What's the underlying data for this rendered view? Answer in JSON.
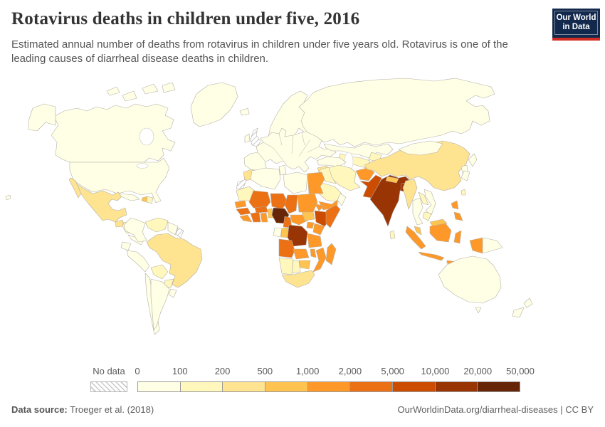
{
  "header": {
    "title": "Rotavirus deaths in children under five, 2016",
    "subtitle": "Estimated annual number of deaths from rotavirus in children under five years old. Rotavirus is one of the leading causes of diarrheal disease deaths in children.",
    "logo_line1": "Our World",
    "logo_line2": "in Data",
    "logo_bg_color": "#12294d",
    "logo_bar_color": "#d22d23"
  },
  "legend": {
    "no_data_label": "No data"
  },
  "footer": {
    "source_label": "Data source:",
    "source_value": " Troeger et al. (2018)",
    "credit": "OurWorldinData.org/diarrheal-diseases | CC BY"
  },
  "chart_data": {
    "type": "choropleth",
    "title": "Rotavirus deaths in children under five, 2016",
    "year": 2016,
    "unit": "deaths",
    "legend_position": "bottom",
    "tick_labels": [
      "0",
      "100",
      "200",
      "500",
      "1,000",
      "2,000",
      "5,000",
      "10,000",
      "20,000",
      "50,000"
    ],
    "bin_thresholds": [
      0,
      100,
      200,
      500,
      1000,
      2000,
      5000,
      10000,
      20000,
      50000
    ],
    "palette": [
      "#ffffe5",
      "#fff7bc",
      "#fee391",
      "#fec44f",
      "#fe9929",
      "#ec7014",
      "#cc4c02",
      "#993404",
      "#662506"
    ],
    "no_data": [
      "United Kingdom",
      "Western Sahara",
      "French Guiana"
    ],
    "no_data_keys": [
      "united-kingdom",
      "western-sahara",
      "french-guiana"
    ],
    "countries": [
      {
        "key": "canada",
        "name": "Canada",
        "bin": 0
      },
      {
        "key": "usa",
        "name": "United States",
        "bin": 0
      },
      {
        "key": "greenland",
        "name": "Greenland",
        "bin": 0
      },
      {
        "key": "hawaii",
        "name": "Hawaii (US)",
        "bin": 0
      },
      {
        "key": "mexico",
        "name": "Mexico",
        "bin": 2
      },
      {
        "key": "guatemala",
        "name": "Guatemala",
        "bin": 2
      },
      {
        "key": "honduras-nicaragua",
        "name": "Honduras/Nicaragua",
        "bin": 1
      },
      {
        "key": "costa-rica-panama",
        "name": "Costa Rica/Panama",
        "bin": 0
      },
      {
        "key": "cuba",
        "name": "Cuba",
        "bin": 0
      },
      {
        "key": "haiti",
        "name": "Haiti",
        "bin": 3
      },
      {
        "key": "dominican-republic",
        "name": "Dominican Republic",
        "bin": 1
      },
      {
        "key": "colombia",
        "name": "Colombia",
        "bin": 0
      },
      {
        "key": "venezuela",
        "name": "Venezuela",
        "bin": 1
      },
      {
        "key": "guyana-suriname",
        "name": "Guyana/Suriname",
        "bin": 0
      },
      {
        "key": "ecuador",
        "name": "Ecuador",
        "bin": 0
      },
      {
        "key": "peru",
        "name": "Peru",
        "bin": 0
      },
      {
        "key": "brazil",
        "name": "Brazil",
        "bin": 2
      },
      {
        "key": "bolivia",
        "name": "Bolivia",
        "bin": 1
      },
      {
        "key": "paraguay",
        "name": "Paraguay",
        "bin": 1
      },
      {
        "key": "chile",
        "name": "Chile",
        "bin": 0
      },
      {
        "key": "argentina",
        "name": "Argentina",
        "bin": 0
      },
      {
        "key": "uruguay",
        "name": "Uruguay",
        "bin": 0
      },
      {
        "key": "iceland",
        "name": "Iceland",
        "bin": 0
      },
      {
        "key": "ireland",
        "name": "Ireland",
        "bin": 0
      },
      {
        "key": "scandinavia",
        "name": "Norway/Sweden/Finland",
        "bin": 0
      },
      {
        "key": "europe",
        "name": "Europe (mainland)",
        "bin": 0
      },
      {
        "key": "russia",
        "name": "Russia",
        "bin": 0
      },
      {
        "key": "kazakhstan",
        "name": "Kazakhstan",
        "bin": 0
      },
      {
        "key": "uzbekistan-turkmenistan",
        "name": "Uzbekistan/Turkmenistan",
        "bin": 1
      },
      {
        "key": "kyrgyzstan-tajikistan",
        "name": "Kyrgyzstan/Tajikistan",
        "bin": 1
      },
      {
        "key": "turkey",
        "name": "Turkey",
        "bin": 0
      },
      {
        "key": "syria",
        "name": "Syria",
        "bin": 2
      },
      {
        "key": "iraq",
        "name": "Iraq",
        "bin": 1
      },
      {
        "key": "jordan-israel",
        "name": "Jordan/Israel",
        "bin": 1
      },
      {
        "key": "saudi-arabia",
        "name": "Saudi Arabia",
        "bin": 1
      },
      {
        "key": "yemen",
        "name": "Yemen",
        "bin": 4
      },
      {
        "key": "oman",
        "name": "Oman",
        "bin": 0
      },
      {
        "key": "iran",
        "name": "Iran",
        "bin": 1
      },
      {
        "key": "afghanistan",
        "name": "Afghanistan",
        "bin": 4
      },
      {
        "key": "pakistan",
        "name": "Pakistan",
        "bin": 6
      },
      {
        "key": "india",
        "name": "India",
        "bin": 7
      },
      {
        "key": "nepal",
        "name": "Nepal",
        "bin": 3
      },
      {
        "key": "bangladesh",
        "name": "Bangladesh",
        "bin": 7
      },
      {
        "key": "sri-lanka",
        "name": "Sri Lanka",
        "bin": 1
      },
      {
        "key": "china",
        "name": "China",
        "bin": 2
      },
      {
        "key": "mongolia",
        "name": "Mongolia",
        "bin": 0
      },
      {
        "key": "korea",
        "name": "North/South Korea",
        "bin": 0
      },
      {
        "key": "japan",
        "name": "Japan",
        "bin": 0
      },
      {
        "key": "taiwan",
        "name": "Taiwan",
        "bin": 1
      },
      {
        "key": "myanmar",
        "name": "Myanmar",
        "bin": 2
      },
      {
        "key": "thailand",
        "name": "Thailand",
        "bin": 0
      },
      {
        "key": "laos",
        "name": "Laos",
        "bin": 1
      },
      {
        "key": "vietnam",
        "name": "Vietnam",
        "bin": 0
      },
      {
        "key": "cambodia",
        "name": "Cambodia",
        "bin": 1
      },
      {
        "key": "malaysia",
        "name": "Malaysia",
        "bin": 3
      },
      {
        "key": "indonesia",
        "name": "Indonesia",
        "bin": 4
      },
      {
        "key": "philippines",
        "name": "Philippines",
        "bin": 4
      },
      {
        "key": "papua-new-guinea",
        "name": "Papua New Guinea",
        "bin": 0
      },
      {
        "key": "australia",
        "name": "Australia",
        "bin": 0
      },
      {
        "key": "new-zealand",
        "name": "New Zealand",
        "bin": 0
      },
      {
        "key": "morocco",
        "name": "Morocco",
        "bin": 2
      },
      {
        "key": "algeria",
        "name": "Algeria",
        "bin": 0
      },
      {
        "key": "tunisia",
        "name": "Tunisia",
        "bin": 0
      },
      {
        "key": "libya",
        "name": "Libya",
        "bin": 0
      },
      {
        "key": "egypt",
        "name": "Egypt",
        "bin": 4
      },
      {
        "key": "mauritania",
        "name": "Mauritania",
        "bin": 1
      },
      {
        "key": "mali",
        "name": "Mali",
        "bin": 5
      },
      {
        "key": "niger",
        "name": "Niger",
        "bin": 5
      },
      {
        "key": "chad",
        "name": "Chad",
        "bin": 5
      },
      {
        "key": "sudan",
        "name": "Sudan",
        "bin": 4
      },
      {
        "key": "eritrea",
        "name": "Eritrea",
        "bin": 4
      },
      {
        "key": "senegal",
        "name": "Senegal",
        "bin": 4
      },
      {
        "key": "guinea",
        "name": "Guinea",
        "bin": 5
      },
      {
        "key": "sierra-leone-liberia",
        "name": "Sierra Leone/Liberia",
        "bin": 4
      },
      {
        "key": "ivory-coast",
        "name": "Côte d'Ivoire",
        "bin": 5
      },
      {
        "key": "ghana",
        "name": "Ghana",
        "bin": 4
      },
      {
        "key": "burkina-faso",
        "name": "Burkina Faso",
        "bin": 5
      },
      {
        "key": "benin-togo",
        "name": "Benin/Togo",
        "bin": 3
      },
      {
        "key": "nigeria",
        "name": "Nigeria",
        "bin": 8
      },
      {
        "key": "cameroon",
        "name": "Cameroon",
        "bin": 5
      },
      {
        "key": "central-african-republic",
        "name": "Central African Republic",
        "bin": 4
      },
      {
        "key": "south-sudan",
        "name": "South Sudan",
        "bin": 3
      },
      {
        "key": "ethiopia",
        "name": "Ethiopia",
        "bin": 6
      },
      {
        "key": "somalia",
        "name": "Somalia",
        "bin": 5
      },
      {
        "key": "uganda",
        "name": "Uganda",
        "bin": 4
      },
      {
        "key": "kenya",
        "name": "Kenya",
        "bin": 4
      },
      {
        "key": "gabon",
        "name": "Gabon/Eq. Guinea",
        "bin": 0
      },
      {
        "key": "congo",
        "name": "Congo",
        "bin": 3
      },
      {
        "key": "dr-congo",
        "name": "DR Congo",
        "bin": 7
      },
      {
        "key": "tanzania",
        "name": "Tanzania",
        "bin": 4
      },
      {
        "key": "angola",
        "name": "Angola",
        "bin": 5
      },
      {
        "key": "zambia",
        "name": "Zambia",
        "bin": 4
      },
      {
        "key": "malawi",
        "name": "Malawi",
        "bin": 4
      },
      {
        "key": "mozambique",
        "name": "Mozambique",
        "bin": 4
      },
      {
        "key": "zimbabwe",
        "name": "Zimbabwe",
        "bin": 3
      },
      {
        "key": "namibia",
        "name": "Namibia",
        "bin": 1
      },
      {
        "key": "botswana",
        "name": "Botswana",
        "bin": 1
      },
      {
        "key": "south-africa",
        "name": "South Africa",
        "bin": 2
      },
      {
        "key": "madagascar",
        "name": "Madagascar",
        "bin": 4
      }
    ]
  }
}
